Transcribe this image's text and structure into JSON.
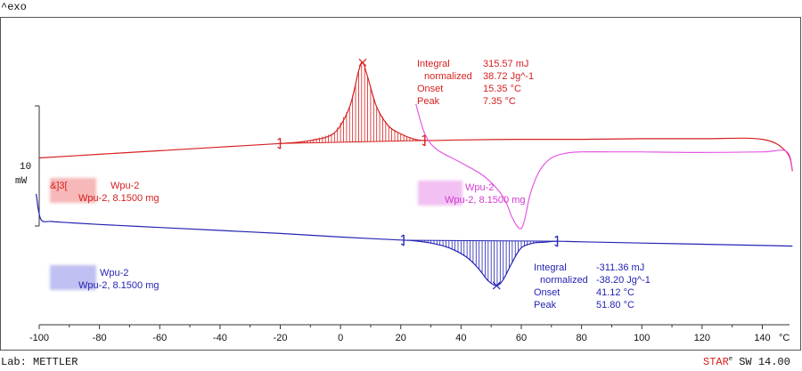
{
  "chart_data": {
    "type": "line",
    "exo_label": "^exo",
    "xlabel": "°C",
    "xlim": [
      -100,
      150
    ],
    "x_ticks": [
      -100,
      -80,
      -60,
      -40,
      -20,
      0,
      20,
      40,
      60,
      80,
      100,
      120,
      140
    ],
    "y_scale_value": "10",
    "y_scale_unit": "mW",
    "grid": false,
    "footer_left": "Lab: METTLER",
    "footer_right_brand": "STAR",
    "footer_right_registered": "e",
    "footer_right_suffix": " SW 14.00",
    "series": [
      {
        "color": "#d62020",
        "label_line1_prefix": "&]3[",
        "label_line1_name": "Wpu-2",
        "label_line2": "Wpu-2, 8.1500 mg",
        "x": [
          -100,
          -80,
          -60,
          -40,
          -20,
          -10,
          -2,
          3,
          6,
          7.35,
          9,
          12,
          16,
          20,
          24,
          28,
          40,
          60,
          80,
          100,
          120,
          140,
          148,
          150
        ],
        "y": [
          -2.0,
          -1.4,
          -0.8,
          -0.2,
          0.4,
          0.9,
          2.2,
          6.5,
          12.5,
          13.9,
          11.5,
          6.5,
          3.3,
          2.0,
          1.2,
          0.9,
          1.0,
          1.1,
          1.1,
          1.2,
          1.2,
          1.1,
          -1.0,
          -4.2
        ],
        "peak_marker_x": 7.35,
        "integration_limits": [
          -20,
          28
        ],
        "annotation": {
          "integral_label": "Integral",
          "integral_value": "315.57 mJ",
          "normalized_label": "normalized",
          "normalized_value": "38.72 Jg^-1",
          "onset_label": "Onset",
          "onset_value": "15.35 °C",
          "peak_label": "Peak",
          "peak_value": "7.35 °C"
        }
      },
      {
        "color": "#e55ae5",
        "label_line1_name": "Wpu-2",
        "label_line2": "Wpu-2, 8.1500 mg",
        "x": [
          25,
          28,
          32,
          40,
          48,
          54,
          57,
          59.5,
          61,
          63,
          66,
          70,
          75,
          80,
          90,
          100,
          120,
          140,
          148,
          150
        ],
        "y": [
          7.0,
          2.0,
          -0.6,
          -2.8,
          -5.2,
          -8.5,
          -12.0,
          -13.8,
          -12.5,
          -8.0,
          -4.2,
          -2.0,
          -1.2,
          -1.0,
          -1.0,
          -1.0,
          -1.1,
          -1.0,
          -0.9,
          -4.0
        ]
      },
      {
        "color": "#2424b4",
        "label_line1_name": "Wpu-2",
        "label_line2": "Wpu-2, 8.1500 mg",
        "x": [
          -101,
          -99.5,
          -96,
          -90,
          -80,
          -60,
          -40,
          -20,
          0,
          20,
          24,
          30,
          36,
          42,
          46,
          49,
          51.8,
          54,
          57,
          60,
          64,
          68,
          72,
          80,
          100,
          120,
          140,
          150
        ],
        "y": [
          -8.0,
          -12.2,
          -12.6,
          -12.8,
          -13.1,
          -13.6,
          -14.1,
          -14.6,
          -15.2,
          -15.7,
          -15.8,
          -16.2,
          -17.0,
          -18.6,
          -20.6,
          -22.5,
          -23.3,
          -22.3,
          -19.4,
          -17.0,
          -16.2,
          -16.05,
          -15.9,
          -16.0,
          -16.2,
          -16.4,
          -16.6,
          -16.7
        ],
        "peak_marker_x": 51.8,
        "integration_limits": [
          21,
          72
        ],
        "annotation": {
          "integral_label": "Integral",
          "integral_value": "-311.36 mJ",
          "normalized_label": "normalized",
          "normalized_value": "-38.20 Jg^-1",
          "onset_label": "Onset",
          "onset_value": "41.12 °C",
          "peak_label": "Peak",
          "peak_value": "51.80 °C"
        }
      }
    ]
  }
}
